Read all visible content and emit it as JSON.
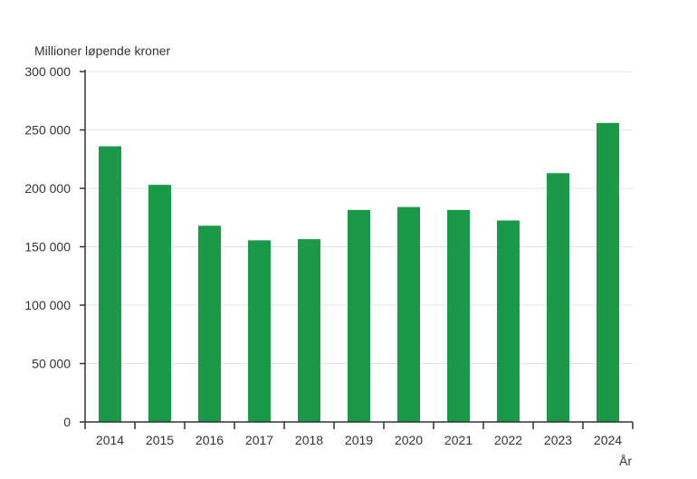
{
  "chart_data": {
    "type": "bar",
    "ylabel": "Millioner løpende kroner",
    "xlabel": "År",
    "categories": [
      "2014",
      "2015",
      "2016",
      "2017",
      "2018",
      "2019",
      "2020",
      "2021",
      "2022",
      "2023",
      "2024"
    ],
    "values": [
      236000,
      203000,
      168000,
      155500,
      156500,
      181500,
      184000,
      181500,
      172500,
      213000,
      256000
    ],
    "ylim": [
      0,
      300000
    ],
    "yticks": [
      0,
      50000,
      100000,
      150000,
      200000,
      250000,
      300000
    ],
    "ytick_labels": [
      "0",
      "50 000",
      "100 000",
      "150 000",
      "200 000",
      "250 000",
      "300 000"
    ],
    "grid": true,
    "bar_color": "#1a9a48"
  }
}
